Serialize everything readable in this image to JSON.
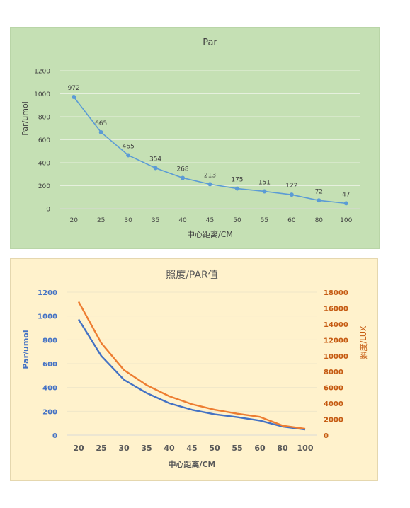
{
  "chart_data": [
    {
      "type": "line",
      "title": "Par",
      "xlabel": "中心距离/CM",
      "ylabel": "Par/umol",
      "categories": [
        "20",
        "25",
        "30",
        "35",
        "40",
        "45",
        "50",
        "55",
        "60",
        "80",
        "100"
      ],
      "series": [
        {
          "name": "",
          "values": [
            972,
            665,
            465,
            354,
            268,
            213,
            175,
            151,
            122,
            72,
            47
          ],
          "color": "#5b9bd5"
        }
      ],
      "data_labels": true,
      "markers": true,
      "ylim": [
        0,
        1200
      ],
      "yticks": [
        0,
        200,
        400,
        600,
        800,
        1000,
        1200
      ],
      "grid": true,
      "legend": "none",
      "background": "#c5e0b4"
    },
    {
      "type": "line",
      "title": "照度/PAR值",
      "xlabel": "中心距离/CM",
      "ylabel": "Par/umol",
      "y2label": "照度/LUX",
      "categories": [
        "20",
        "25",
        "30",
        "35",
        "40",
        "45",
        "50",
        "55",
        "60",
        "80",
        "100"
      ],
      "series": [
        {
          "name": "",
          "axis": "left",
          "values": [
            972,
            665,
            465,
            354,
            268,
            213,
            175,
            151,
            122,
            72,
            47
          ],
          "color": "#4472c4"
        },
        {
          "name": "",
          "axis": "right",
          "values": [
            16800,
            11600,
            8200,
            6300,
            4900,
            3900,
            3200,
            2700,
            2300,
            1200,
            800
          ],
          "color": "#ed7d31"
        }
      ],
      "ylim": [
        0,
        1200
      ],
      "yticks": [
        0,
        200,
        400,
        600,
        800,
        1000,
        1200
      ],
      "y2lim": [
        0,
        18000
      ],
      "y2ticks": [
        0,
        2000,
        4000,
        6000,
        8000,
        10000,
        12000,
        14000,
        16000,
        18000
      ],
      "grid": true,
      "legend": "none",
      "background": "#fff2cc"
    }
  ]
}
